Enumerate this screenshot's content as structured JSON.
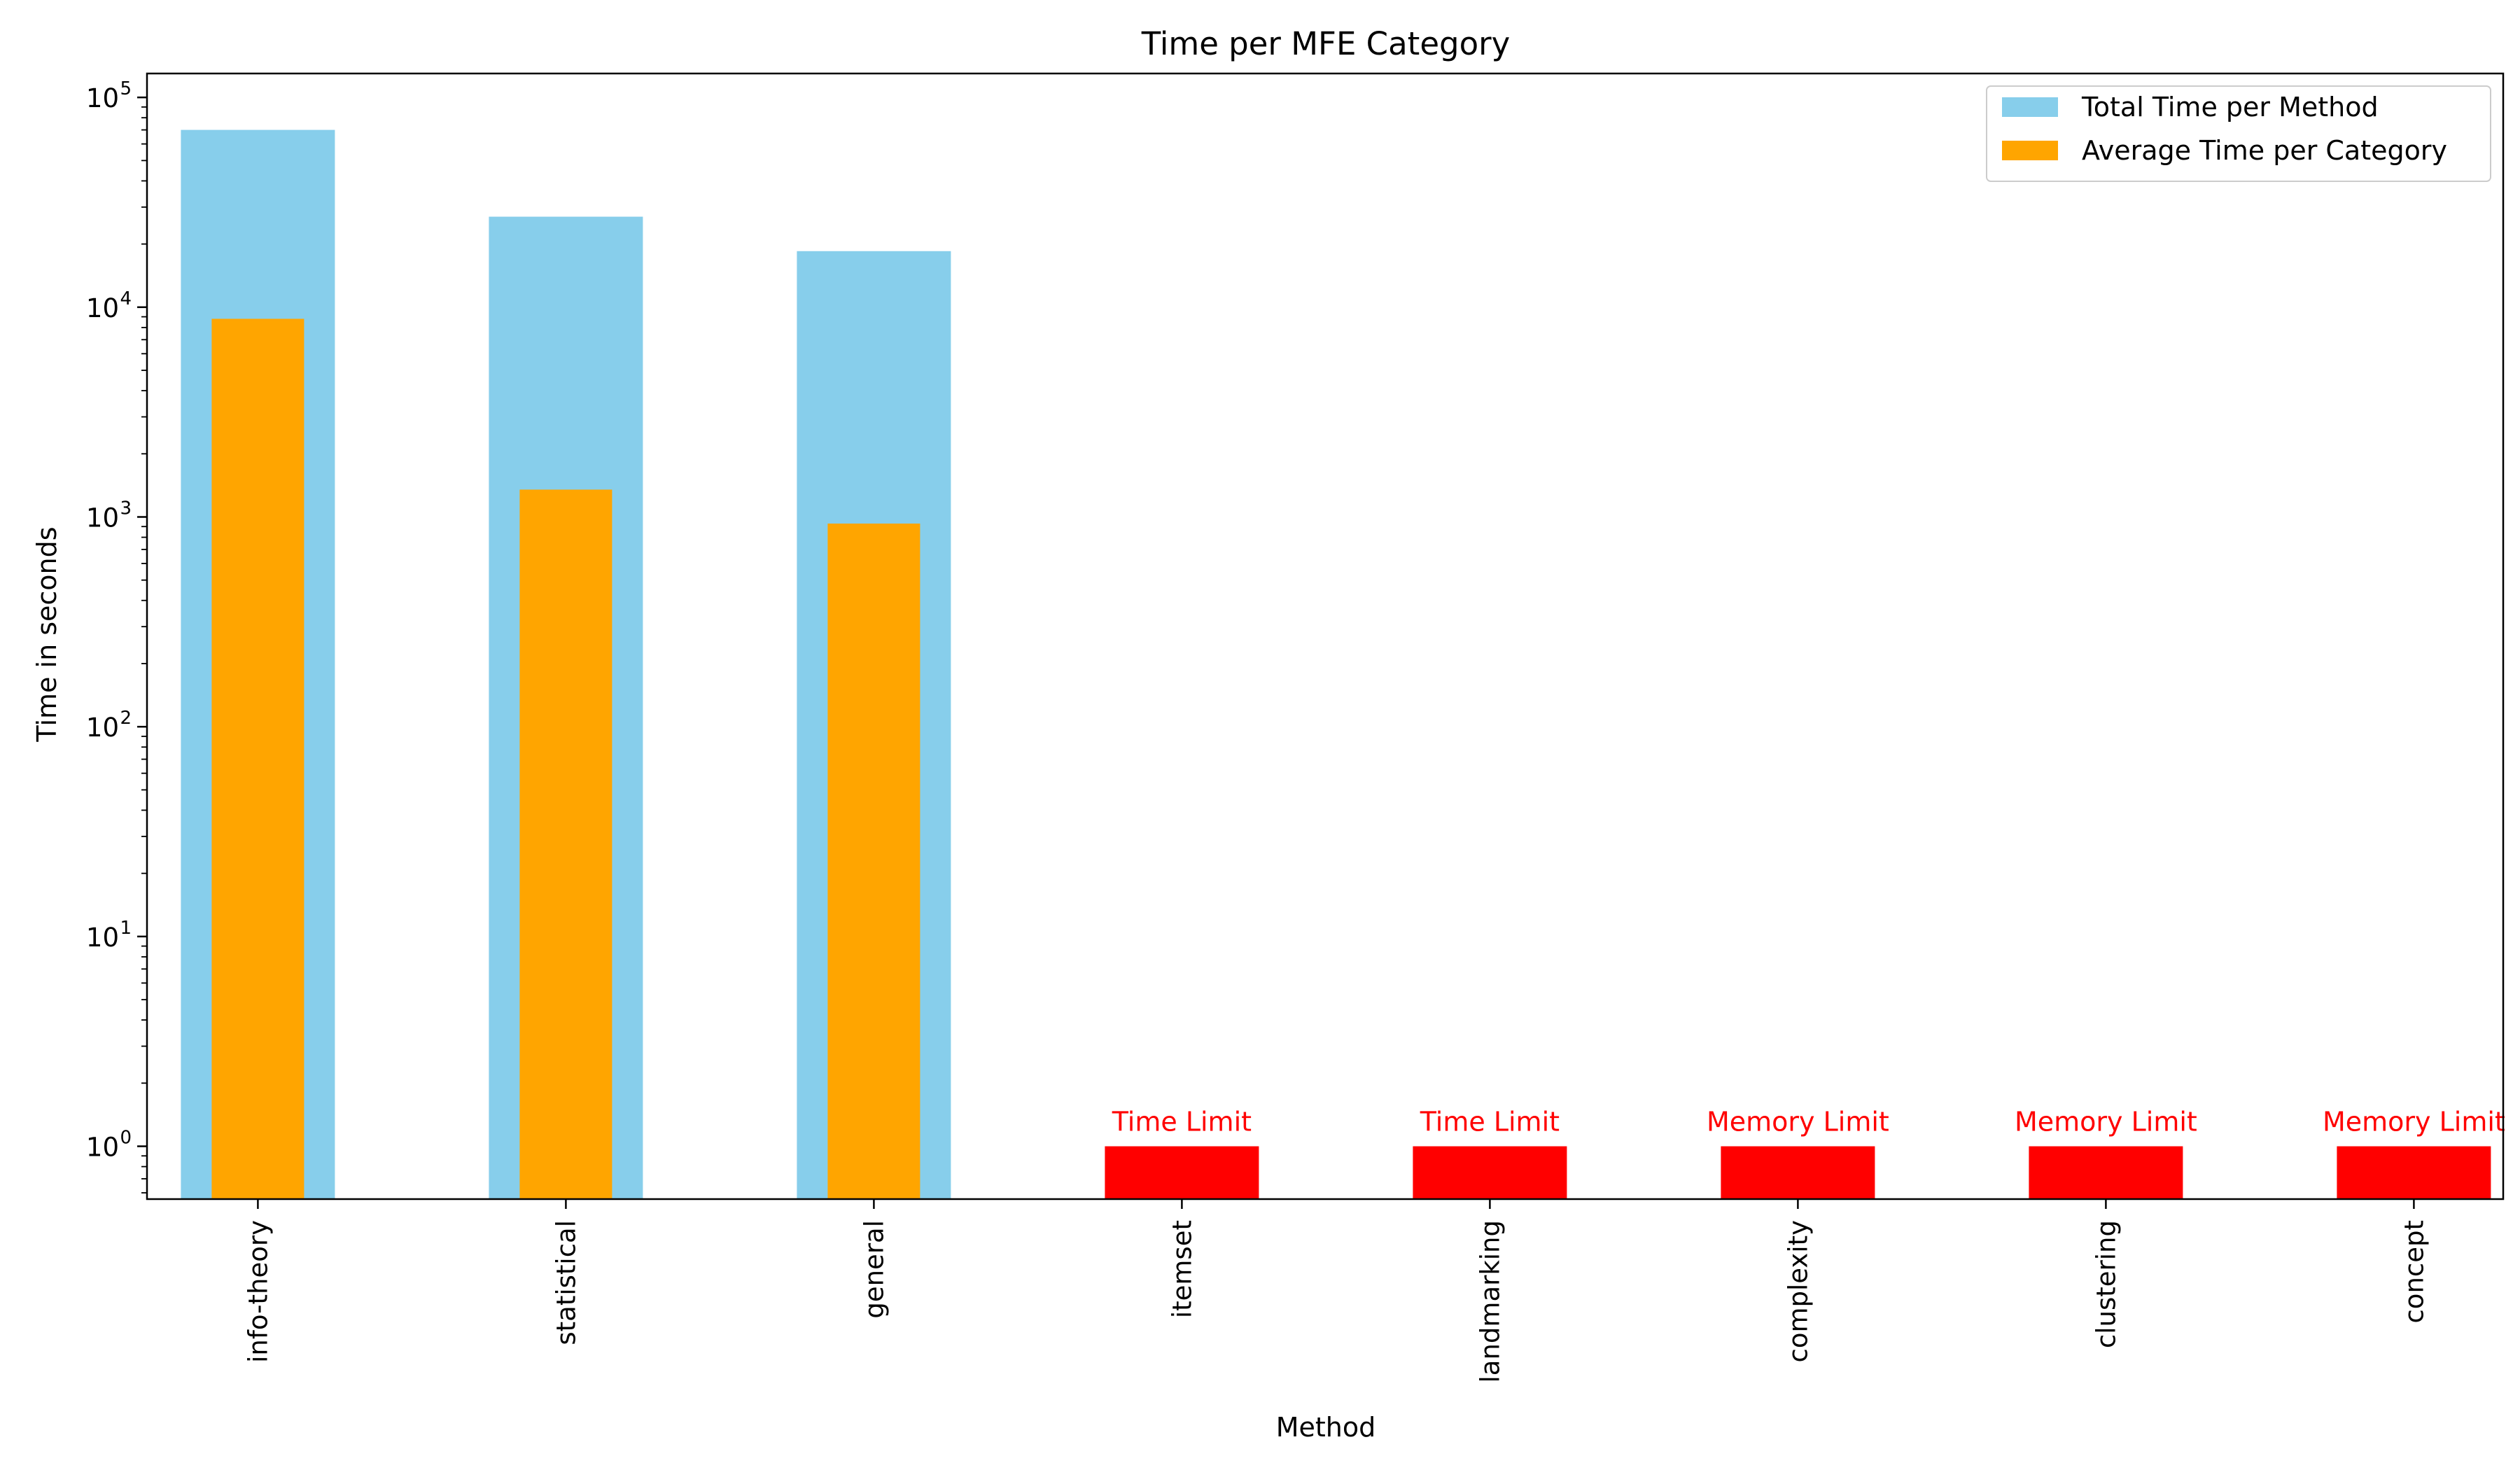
{
  "chart_data": {
    "type": "bar",
    "title": "Time per MFE Category",
    "xlabel": "Method",
    "ylabel": "Time in seconds",
    "yscale": "log",
    "ylim": [
      0.56,
      130000
    ],
    "y_ticks": [
      {
        "value": 1,
        "base": "10",
        "exp": "0"
      },
      {
        "value": 10,
        "base": "10",
        "exp": "1"
      },
      {
        "value": 100,
        "base": "10",
        "exp": "2"
      },
      {
        "value": 1000,
        "base": "10",
        "exp": "3"
      },
      {
        "value": 10000,
        "base": "10",
        "exp": "4"
      },
      {
        "value": 100000,
        "base": "10",
        "exp": "5"
      }
    ],
    "categories": [
      "info-theory",
      "statistical",
      "general",
      "itemset",
      "landmarking",
      "complexity",
      "clustering",
      "concept"
    ],
    "series": [
      {
        "name": "Total Time per Method",
        "color": "#87ceeb",
        "values": [
          70000,
          27000,
          18500,
          null,
          null,
          null,
          null,
          null
        ]
      },
      {
        "name": "Average Time per Category",
        "color": "#ffa500",
        "values": [
          8800,
          1350,
          930,
          null,
          null,
          null,
          null,
          null
        ]
      }
    ],
    "limit_bars": {
      "color": "#ff0000",
      "value": 1,
      "entries": [
        {
          "category": "itemset",
          "label": "Time Limit"
        },
        {
          "category": "landmarking",
          "label": "Time Limit"
        },
        {
          "category": "complexity",
          "label": "Memory Limit"
        },
        {
          "category": "clustering",
          "label": "Memory Limit"
        },
        {
          "category": "concept",
          "label": "Memory Limit"
        }
      ]
    },
    "legend": {
      "position": "top-right"
    },
    "grid": false
  }
}
